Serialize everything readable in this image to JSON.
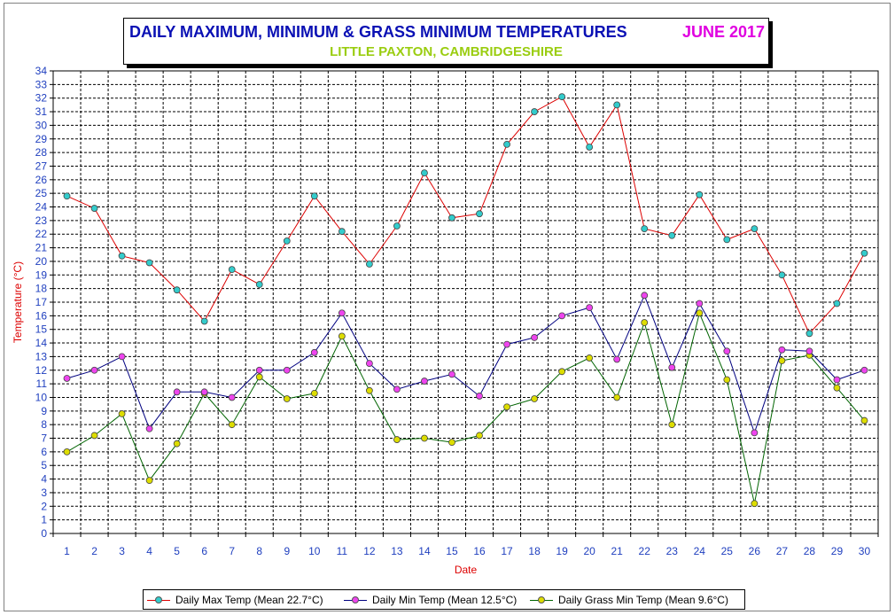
{
  "chart_data": {
    "type": "line",
    "title": "DAILY MAXIMUM, MINIMUM & GRASS MINIMUM TEMPERATURES",
    "title_date": "JUNE 2017",
    "subtitle": "LITTLE PAXTON, CAMBRIDGESHIRE",
    "xlabel": "Date",
    "ylabel": "Temperature (°C)",
    "ylim": [
      0,
      34
    ],
    "x": [
      1,
      2,
      3,
      4,
      5,
      6,
      7,
      8,
      9,
      10,
      11,
      12,
      13,
      14,
      15,
      16,
      17,
      18,
      19,
      20,
      21,
      22,
      23,
      24,
      25,
      26,
      27,
      28,
      29,
      30
    ],
    "grid": "dashed",
    "legend_position": "bottom",
    "series": [
      {
        "name": "Daily Max Temp (Mean 22.7°C)",
        "line_color": "#dd0000",
        "marker_color": "#33cccc",
        "values": [
          24.8,
          23.9,
          20.4,
          19.9,
          17.9,
          15.6,
          19.4,
          18.3,
          21.5,
          24.8,
          22.2,
          19.8,
          22.6,
          26.5,
          23.2,
          23.5,
          28.6,
          31.0,
          32.1,
          28.4,
          31.5,
          22.4,
          21.9,
          24.9,
          21.6,
          22.4,
          19.0,
          14.7,
          16.9,
          20.6
        ]
      },
      {
        "name": "Daily Min Temp (Mean 12.5°C)",
        "line_color": "#000080",
        "marker_color": "#ee44ee",
        "values": [
          11.4,
          12.0,
          13.0,
          7.7,
          10.4,
          10.4,
          10.0,
          12.0,
          12.0,
          13.3,
          16.2,
          12.5,
          10.6,
          11.2,
          11.7,
          10.1,
          13.9,
          14.4,
          16.0,
          16.6,
          12.8,
          17.5,
          12.2,
          16.9,
          13.4,
          7.4,
          13.5,
          13.4,
          11.3,
          12.0
        ]
      },
      {
        "name": "Daily Grass Min Temp (Mean 9.6°C)",
        "line_color": "#006400",
        "marker_color": "#dddd00",
        "values": [
          6.0,
          7.2,
          8.8,
          3.9,
          6.6,
          10.3,
          8.0,
          11.5,
          9.9,
          10.3,
          14.5,
          10.5,
          6.9,
          7.0,
          6.7,
          7.2,
          9.3,
          9.9,
          11.9,
          12.9,
          10.0,
          15.5,
          8.0,
          16.2,
          11.3,
          2.2,
          12.7,
          13.1,
          10.7,
          8.3
        ]
      }
    ]
  }
}
